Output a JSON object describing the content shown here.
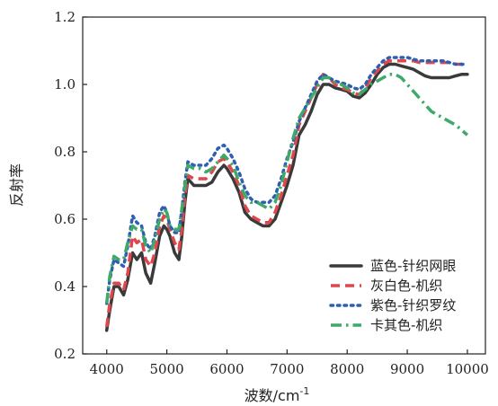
{
  "chart_data": {
    "type": "line",
    "xlabel": "波数/cm",
    "xlabel_sup": "-1",
    "ylabel": "反射率",
    "xlim": [
      3600,
      10300
    ],
    "ylim": [
      0.2,
      1.2
    ],
    "xticks": [
      4000,
      5000,
      6000,
      7000,
      8000,
      9000,
      10000
    ],
    "yticks": [
      0.2,
      0.4,
      0.6,
      0.8,
      1.0,
      1.2
    ],
    "ytick_labels": [
      "0.2",
      "0.4",
      "0.6",
      "0.8",
      "1.0",
      "1.2"
    ],
    "legend_position": "bottom-right",
    "series": [
      {
        "name": "蓝色-针织网眼",
        "color": "#3a3a3a",
        "dash": "solid",
        "x": [
          4000,
          4050,
          4120,
          4200,
          4280,
          4350,
          4430,
          4500,
          4580,
          4650,
          4730,
          4800,
          4880,
          4950,
          5000,
          5050,
          5130,
          5200,
          5250,
          5300,
          5350,
          5450,
          5550,
          5650,
          5750,
          5850,
          5950,
          6000,
          6100,
          6200,
          6300,
          6400,
          6500,
          6600,
          6700,
          6800,
          6900,
          7000,
          7100,
          7200,
          7300,
          7400,
          7500,
          7600,
          7700,
          7800,
          7900,
          8000,
          8100,
          8200,
          8300,
          8400,
          8500,
          8600,
          8700,
          8800,
          8900,
          9000,
          9100,
          9200,
          9300,
          9400,
          9500,
          9600,
          9700,
          9800,
          9900,
          10000
        ],
        "values": [
          0.27,
          0.33,
          0.4,
          0.4,
          0.375,
          0.42,
          0.5,
          0.48,
          0.5,
          0.44,
          0.41,
          0.47,
          0.55,
          0.58,
          0.57,
          0.55,
          0.5,
          0.48,
          0.55,
          0.65,
          0.72,
          0.7,
          0.7,
          0.7,
          0.71,
          0.74,
          0.76,
          0.75,
          0.72,
          0.68,
          0.62,
          0.6,
          0.59,
          0.58,
          0.58,
          0.6,
          0.65,
          0.7,
          0.76,
          0.85,
          0.88,
          0.92,
          0.97,
          1.0,
          1.0,
          0.99,
          0.985,
          0.98,
          0.965,
          0.96,
          0.975,
          1.0,
          1.03,
          1.05,
          1.06,
          1.06,
          1.055,
          1.05,
          1.045,
          1.035,
          1.025,
          1.02,
          1.02,
          1.02,
          1.02,
          1.025,
          1.03,
          1.03
        ]
      },
      {
        "name": "灰白色-机织",
        "color": "#e0474c",
        "dash": "dashed",
        "x": [
          4000,
          4050,
          4120,
          4200,
          4280,
          4350,
          4430,
          4500,
          4580,
          4650,
          4730,
          4800,
          4880,
          4950,
          5000,
          5050,
          5130,
          5200,
          5250,
          5300,
          5350,
          5450,
          5550,
          5650,
          5750,
          5850,
          5950,
          6000,
          6100,
          6200,
          6300,
          6400,
          6500,
          6600,
          6700,
          6800,
          6900,
          7000,
          7100,
          7200,
          7300,
          7400,
          7500,
          7600,
          7700,
          7800,
          7900,
          8000,
          8100,
          8200,
          8300,
          8400,
          8500,
          8600,
          8700,
          8800,
          8900,
          9000,
          9100,
          9200,
          9300,
          9400,
          9500,
          9600,
          9700,
          9800,
          9900,
          10000
        ],
        "values": [
          0.28,
          0.35,
          0.41,
          0.41,
          0.39,
          0.44,
          0.55,
          0.53,
          0.54,
          0.48,
          0.46,
          0.5,
          0.58,
          0.61,
          0.6,
          0.57,
          0.53,
          0.51,
          0.57,
          0.67,
          0.73,
          0.72,
          0.72,
          0.72,
          0.74,
          0.77,
          0.78,
          0.77,
          0.74,
          0.7,
          0.64,
          0.61,
          0.6,
          0.59,
          0.59,
          0.62,
          0.67,
          0.73,
          0.79,
          0.88,
          0.92,
          0.96,
          1.0,
          1.03,
          1.02,
          1.0,
          0.99,
          0.985,
          0.975,
          0.97,
          0.99,
          1.02,
          1.04,
          1.06,
          1.07,
          1.07,
          1.07,
          1.07,
          1.07,
          1.065,
          1.065,
          1.065,
          1.065,
          1.065,
          1.065,
          1.06,
          1.06,
          1.055
        ]
      },
      {
        "name": "紫色-针织罗纹",
        "color": "#2f5fb0",
        "dash": "dotted",
        "x": [
          4000,
          4050,
          4120,
          4200,
          4280,
          4350,
          4430,
          4500,
          4580,
          4650,
          4730,
          4800,
          4880,
          4950,
          5000,
          5050,
          5130,
          5200,
          5250,
          5300,
          5350,
          5450,
          5550,
          5650,
          5750,
          5850,
          5950,
          6000,
          6100,
          6200,
          6300,
          6400,
          6500,
          6600,
          6700,
          6800,
          6900,
          7000,
          7100,
          7200,
          7300,
          7400,
          7500,
          7600,
          7700,
          7800,
          7900,
          8000,
          8100,
          8200,
          8300,
          8400,
          8500,
          8600,
          8700,
          8800,
          8900,
          9000,
          9100,
          9200,
          9300,
          9400,
          9500,
          9600,
          9700,
          9800,
          9900,
          10000
        ],
        "values": [
          0.35,
          0.42,
          0.48,
          0.47,
          0.46,
          0.52,
          0.61,
          0.59,
          0.58,
          0.53,
          0.51,
          0.55,
          0.62,
          0.64,
          0.62,
          0.58,
          0.56,
          0.56,
          0.63,
          0.71,
          0.77,
          0.76,
          0.76,
          0.76,
          0.78,
          0.81,
          0.82,
          0.81,
          0.78,
          0.74,
          0.69,
          0.66,
          0.65,
          0.65,
          0.65,
          0.67,
          0.72,
          0.78,
          0.83,
          0.89,
          0.93,
          0.97,
          1.01,
          1.03,
          1.02,
          1.01,
          1.005,
          1.0,
          0.99,
          0.985,
          1.0,
          1.03,
          1.05,
          1.07,
          1.08,
          1.08,
          1.08,
          1.08,
          1.075,
          1.07,
          1.07,
          1.07,
          1.07,
          1.07,
          1.065,
          1.06,
          1.06,
          1.06
        ]
      },
      {
        "name": "卡其色-机织",
        "color": "#3daa6a",
        "dash": "dashdot",
        "x": [
          4000,
          4050,
          4120,
          4200,
          4280,
          4350,
          4430,
          4500,
          4580,
          4650,
          4730,
          4800,
          4880,
          4950,
          5000,
          5050,
          5130,
          5200,
          5250,
          5300,
          5350,
          5450,
          5550,
          5650,
          5750,
          5850,
          5950,
          6000,
          6100,
          6200,
          6300,
          6400,
          6500,
          6600,
          6700,
          6800,
          6900,
          7000,
          7100,
          7200,
          7300,
          7400,
          7500,
          7600,
          7700,
          7800,
          7900,
          8000,
          8100,
          8200,
          8300,
          8400,
          8500,
          8600,
          8700,
          8800,
          8900,
          9000,
          9100,
          9200,
          9300,
          9400,
          9500,
          9600,
          9700,
          9800,
          9900,
          10000
        ],
        "values": [
          0.35,
          0.43,
          0.49,
          0.48,
          0.48,
          0.53,
          0.58,
          0.57,
          0.57,
          0.52,
          0.5,
          0.54,
          0.6,
          0.63,
          0.62,
          0.58,
          0.57,
          0.57,
          0.63,
          0.7,
          0.76,
          0.75,
          0.75,
          0.74,
          0.75,
          0.77,
          0.79,
          0.78,
          0.76,
          0.71,
          0.67,
          0.65,
          0.65,
          0.64,
          0.63,
          0.65,
          0.7,
          0.77,
          0.84,
          0.9,
          0.93,
          0.96,
          0.99,
          1.02,
          1.02,
          1.005,
          1.0,
          0.99,
          0.975,
          0.97,
          0.985,
          1.0,
          1.01,
          1.02,
          1.03,
          1.03,
          1.02,
          1.0,
          0.98,
          0.96,
          0.94,
          0.92,
          0.91,
          0.9,
          0.89,
          0.88,
          0.865,
          0.85
        ]
      }
    ]
  }
}
